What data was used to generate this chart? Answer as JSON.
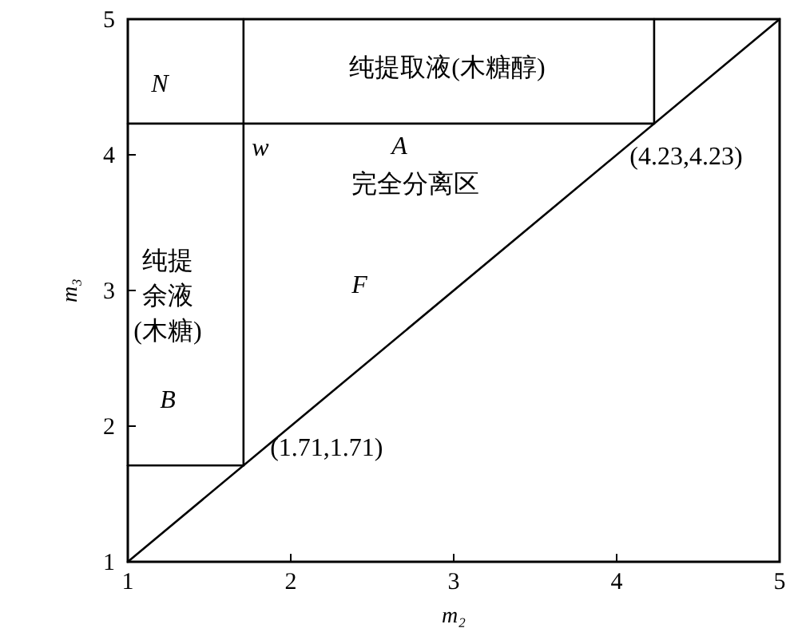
{
  "chart_data": {
    "type": "line",
    "xlabel": "m₂",
    "ylabel": "m₃",
    "xlim": [
      1,
      5
    ],
    "ylim": [
      1,
      5
    ],
    "xticks": [
      1,
      2,
      3,
      4,
      5
    ],
    "yticks": [
      1,
      2,
      3,
      4,
      5
    ],
    "series": [
      {
        "color": "#000000",
        "x": [
          1,
          5
        ],
        "values": [
          1,
          5
        ]
      },
      {
        "color": "#000000",
        "x": [
          1,
          4.23
        ],
        "values": [
          4.23,
          4.23
        ]
      },
      {
        "color": "#000000",
        "x": [
          4.23,
          4.23
        ],
        "values": [
          4.23,
          5
        ]
      },
      {
        "color": "#000000",
        "x": [
          1.71,
          1.71
        ],
        "values": [
          1.71,
          5
        ]
      },
      {
        "color": "#000000",
        "x": [
          1,
          1.71
        ],
        "values": [
          1.71,
          1.71
        ]
      }
    ],
    "annotations": [
      "N",
      "纯提取液(木糖醇)",
      "A",
      "w",
      "完全分离区",
      {
        "text": "(4.23,4.23)",
        "x": 4.23,
        "y": 4.23
      },
      "纯提余液(木糖)",
      "F",
      "B",
      {
        "text": "(1.71,1.71)",
        "x": 1.71,
        "y": 1.71
      }
    ]
  }
}
